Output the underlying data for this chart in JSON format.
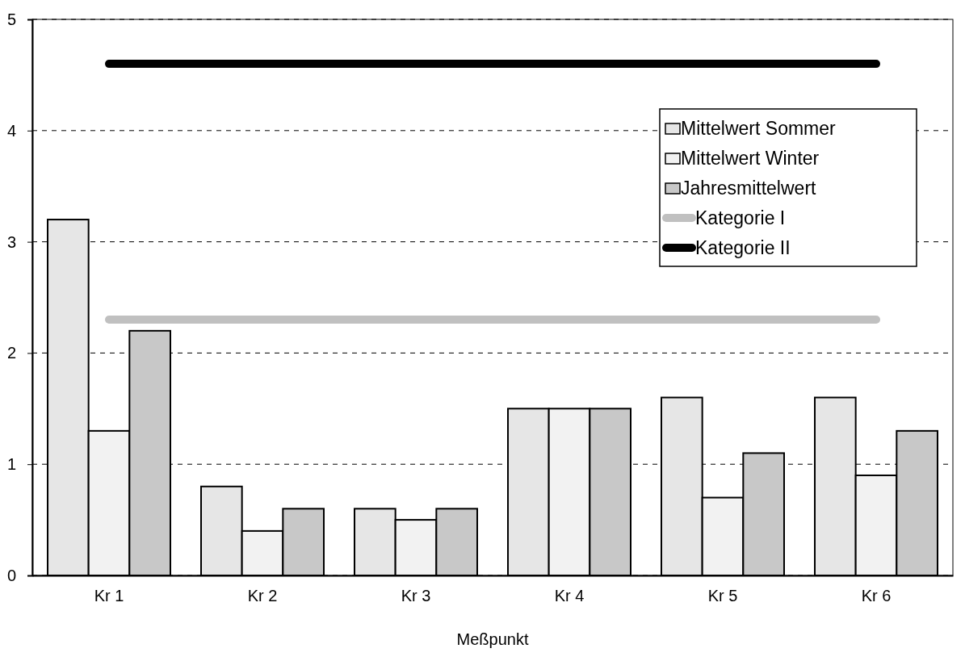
{
  "chart_data": {
    "type": "bar",
    "xlabel": "Meßpunkt",
    "categories": [
      "Kr 1",
      "Kr 2",
      "Kr 3",
      "Kr 4",
      "Kr 5",
      "Kr 6"
    ],
    "ylim": [
      0,
      5
    ],
    "yticks": [
      0,
      1,
      2,
      3,
      4,
      5
    ],
    "grid": "y",
    "legend": "top right",
    "series": [
      {
        "name": "Mittelwert Sommer",
        "color": "#e6e6e6",
        "values": [
          3.2,
          0.8,
          0.6,
          1.5,
          1.6,
          1.6
        ]
      },
      {
        "name": "Mittelwert Winter",
        "color": "#f2f2f2",
        "values": [
          1.3,
          0.4,
          0.5,
          1.5,
          0.7,
          0.9
        ]
      },
      {
        "name": "Jahresmittelwert",
        "color": "#c8c8c8",
        "values": [
          2.2,
          0.6,
          0.6,
          1.5,
          1.1,
          1.3
        ]
      },
      {
        "name": "Kategorie I",
        "type": "line",
        "color": "#c0c0c0",
        "values": [
          2.3,
          2.3,
          2.3,
          2.3,
          2.3,
          2.3
        ]
      },
      {
        "name": "Kategorie II",
        "type": "line",
        "color": "#000000",
        "values": [
          4.6,
          4.6,
          4.6,
          4.6,
          4.6,
          4.6
        ]
      }
    ]
  }
}
